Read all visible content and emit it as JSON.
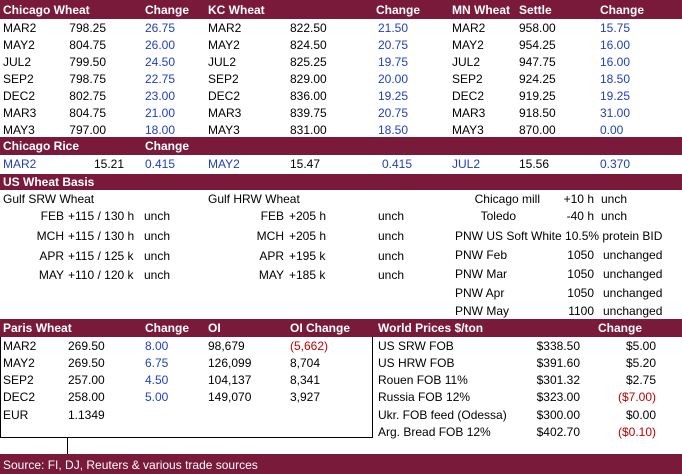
{
  "futures": {
    "headers": {
      "chicago": "Chicago Wheat",
      "chicago_change": "Change",
      "kc": "KC Wheat",
      "kc_change": "Change",
      "mn": "MN Wheat",
      "mn_settle": "Settle",
      "mn_change": "Change"
    },
    "rows": [
      {
        "cm": "MAR2",
        "cp": "798.25",
        "cc": "26.75",
        "km": "MAR2",
        "kp": "822.50",
        "kc": "21.50",
        "mm": "MAR2",
        "mp": "958.00",
        "mc": "15.75"
      },
      {
        "cm": "MAY2",
        "cp": "804.75",
        "cc": "26.00",
        "km": "MAY2",
        "kp": "824.50",
        "kc": "20.75",
        "mm": "MAY2",
        "mp": "954.25",
        "mc": "16.00"
      },
      {
        "cm": "JUL2",
        "cp": "799.50",
        "cc": "24.50",
        "km": "JUL2",
        "kp": "825.25",
        "kc": "19.75",
        "mm": "JUL2",
        "mp": "947.75",
        "mc": "16.00"
      },
      {
        "cm": "SEP2",
        "cp": "798.75",
        "cc": "22.75",
        "km": "SEP2",
        "kp": "829.00",
        "kc": "20.00",
        "mm": "SEP2",
        "mp": "924.25",
        "mc": "18.50"
      },
      {
        "cm": "DEC2",
        "cp": "802.75",
        "cc": "23.00",
        "km": "DEC2",
        "kp": "836.00",
        "kc": "19.25",
        "mm": "DEC2",
        "mp": "919.25",
        "mc": "19.25"
      },
      {
        "cm": "MAR3",
        "cp": "804.75",
        "cc": "21.00",
        "km": "MAR3",
        "kp": "839.75",
        "kc": "20.75",
        "mm": "MAR3",
        "mp": "918.50",
        "mc": "31.00"
      },
      {
        "cm": "MAY3",
        "cp": "797.00",
        "cc": "18.00",
        "km": "MAY3",
        "kp": "831.00",
        "kc": "18.50",
        "mm": "MAY3",
        "mp": "870.00",
        "mc": "0.00"
      }
    ]
  },
  "rice": {
    "header": "Chicago Rice",
    "change_header": "Change",
    "row": {
      "m1": "MAR2",
      "p1": "15.21",
      "c1": "0.415",
      "m2": "MAY2",
      "p2": "15.47",
      "c2": "0.415",
      "m3": "JUL2",
      "p3": "15.56",
      "c3": "0.370"
    }
  },
  "basis": {
    "header": "US Wheat Basis",
    "srw_title": "Gulf SRW Wheat",
    "hrw_title": "Gulf HRW Wheat",
    "srw": [
      {
        "month": "FEB",
        "value": "+115 / 130 h",
        "chg": "unch"
      },
      {
        "month": "MCH",
        "value": "+115 / 130 h",
        "chg": "unch"
      },
      {
        "month": "APR",
        "value": "+115 / 125 k",
        "chg": "unch"
      },
      {
        "month": "MAY",
        "value": "+110 / 120 k",
        "chg": "unch"
      }
    ],
    "hrw": [
      {
        "month": "FEB",
        "value": "+205 h",
        "chg": "unch"
      },
      {
        "month": "MCH",
        "value": "+205 h",
        "chg": "unch"
      },
      {
        "month": "APR",
        "value": "+195 k",
        "chg": "unch"
      },
      {
        "month": "MAY",
        "value": "+185 k",
        "chg": "unch"
      }
    ],
    "chicago_mill": {
      "label": "Chicago mill",
      "value": "+10 h",
      "chg": "unch"
    },
    "toledo": {
      "label": "Toledo",
      "value": "-40 h",
      "chg": "unch"
    },
    "pnw_title": "PNW US Soft White 10.5% protein BID",
    "pnw": [
      {
        "label": "PNW Feb",
        "value": "1050",
        "chg": "unchanged"
      },
      {
        "label": "PNW Mar",
        "value": "1050",
        "chg": "unchanged"
      },
      {
        "label": "PNW Apr",
        "value": "1050",
        "chg": "unchanged"
      },
      {
        "label": "PNW May",
        "value": "1100",
        "chg": "unchanged"
      }
    ]
  },
  "paris": {
    "headers": {
      "name": "Paris Wheat",
      "change": "Change",
      "oi": "OI",
      "oi_change": "OI Change"
    },
    "rows": [
      {
        "m": "MAR2",
        "p": "269.50",
        "c": "8.00",
        "oi": "98,679",
        "oic": "(5,662)"
      },
      {
        "m": "MAY2",
        "p": "269.50",
        "c": "6.75",
        "oi": "126,099",
        "oic": "8,704"
      },
      {
        "m": "SEP2",
        "p": "257.00",
        "c": "4.50",
        "oi": "104,137",
        "oic": "8,341"
      },
      {
        "m": "DEC2",
        "p": "258.00",
        "c": "5.00",
        "oi": "149,070",
        "oic": "3,927"
      }
    ],
    "eur": {
      "label": "EUR",
      "value": "1.1349"
    }
  },
  "world": {
    "headers": {
      "name": "World Prices $/ton",
      "change": "Change"
    },
    "rows": [
      {
        "label": "US SRW FOB",
        "price": "$338.50",
        "chg": "$5.00"
      },
      {
        "label": "US HRW FOB",
        "price": "$391.60",
        "chg": "$5.20"
      },
      {
        "label": "Rouen FOB 11%",
        "price": "$301.32",
        "chg": "$2.75"
      },
      {
        "label": "Russia FOB 12%",
        "price": "$323.00",
        "chg": "($7.00)"
      },
      {
        "label": "Ukr. FOB feed (Odessa)",
        "price": "$300.00",
        "chg": "$0.00"
      },
      {
        "label": "Arg. Bread FOB 12%",
        "price": "$402.70",
        "chg": "($0.10)"
      }
    ]
  },
  "footer": {
    "source": "Source: FI, DJ, Reuters & various trade sources"
  }
}
